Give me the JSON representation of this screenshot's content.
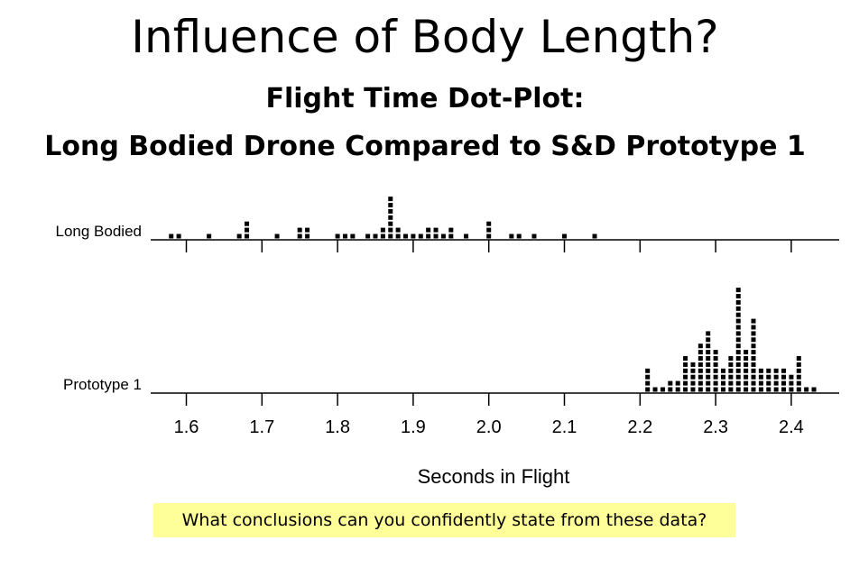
{
  "slide": {
    "title": "Influence of Body Length?",
    "subtitle_line1": "Flight Time Dot-Plot:",
    "subtitle_line2": "Long Bodied Drone Compared to S&D Prototype 1",
    "question": "What conclusions can you confidently state from these data?"
  },
  "chart_data": {
    "type": "dot-plot",
    "xlabel": "Seconds in Flight",
    "xlim": [
      1.56,
      2.45
    ],
    "x_ticks": [
      1.6,
      1.7,
      1.8,
      1.9,
      2.0,
      2.1,
      2.2,
      2.3,
      2.4
    ],
    "x_tick_labels": [
      "1.6",
      "1.7",
      "1.8",
      "1.9",
      "2.0",
      "2.1",
      "2.2",
      "2.3",
      "2.4"
    ],
    "colors": {
      "dots": "#000000",
      "axis": "#000000",
      "highlight": "#ffff99"
    },
    "series": [
      {
        "name": "Long Bodied",
        "points": [
          {
            "x": 1.58,
            "count": 1
          },
          {
            "x": 1.59,
            "count": 1
          },
          {
            "x": 1.63,
            "count": 1
          },
          {
            "x": 1.67,
            "count": 1
          },
          {
            "x": 1.68,
            "count": 3
          },
          {
            "x": 1.72,
            "count": 1
          },
          {
            "x": 1.75,
            "count": 2
          },
          {
            "x": 1.76,
            "count": 2
          },
          {
            "x": 1.8,
            "count": 1
          },
          {
            "x": 1.81,
            "count": 1
          },
          {
            "x": 1.82,
            "count": 1
          },
          {
            "x": 1.84,
            "count": 1
          },
          {
            "x": 1.85,
            "count": 1
          },
          {
            "x": 1.86,
            "count": 2
          },
          {
            "x": 1.87,
            "count": 7
          },
          {
            "x": 1.88,
            "count": 2
          },
          {
            "x": 1.89,
            "count": 1
          },
          {
            "x": 1.9,
            "count": 1
          },
          {
            "x": 1.91,
            "count": 1
          },
          {
            "x": 1.92,
            "count": 2
          },
          {
            "x": 1.93,
            "count": 2
          },
          {
            "x": 1.94,
            "count": 1
          },
          {
            "x": 1.95,
            "count": 2
          },
          {
            "x": 1.97,
            "count": 1
          },
          {
            "x": 2.0,
            "count": 3
          },
          {
            "x": 2.03,
            "count": 1
          },
          {
            "x": 2.04,
            "count": 1
          },
          {
            "x": 2.06,
            "count": 1
          },
          {
            "x": 2.1,
            "count": 1
          },
          {
            "x": 2.14,
            "count": 1
          }
        ]
      },
      {
        "name": "Prototype 1",
        "points": [
          {
            "x": 2.21,
            "count": 4
          },
          {
            "x": 2.22,
            "count": 1
          },
          {
            "x": 2.23,
            "count": 1
          },
          {
            "x": 2.24,
            "count": 2
          },
          {
            "x": 2.25,
            "count": 2
          },
          {
            "x": 2.26,
            "count": 6
          },
          {
            "x": 2.27,
            "count": 5
          },
          {
            "x": 2.28,
            "count": 8
          },
          {
            "x": 2.29,
            "count": 10
          },
          {
            "x": 2.3,
            "count": 7
          },
          {
            "x": 2.31,
            "count": 4
          },
          {
            "x": 2.32,
            "count": 6
          },
          {
            "x": 2.33,
            "count": 17
          },
          {
            "x": 2.34,
            "count": 7
          },
          {
            "x": 2.35,
            "count": 12
          },
          {
            "x": 2.36,
            "count": 4
          },
          {
            "x": 2.37,
            "count": 4
          },
          {
            "x": 2.38,
            "count": 4
          },
          {
            "x": 2.39,
            "count": 4
          },
          {
            "x": 2.4,
            "count": 3
          },
          {
            "x": 2.41,
            "count": 6
          },
          {
            "x": 2.42,
            "count": 1
          },
          {
            "x": 2.43,
            "count": 1
          }
        ]
      }
    ]
  }
}
